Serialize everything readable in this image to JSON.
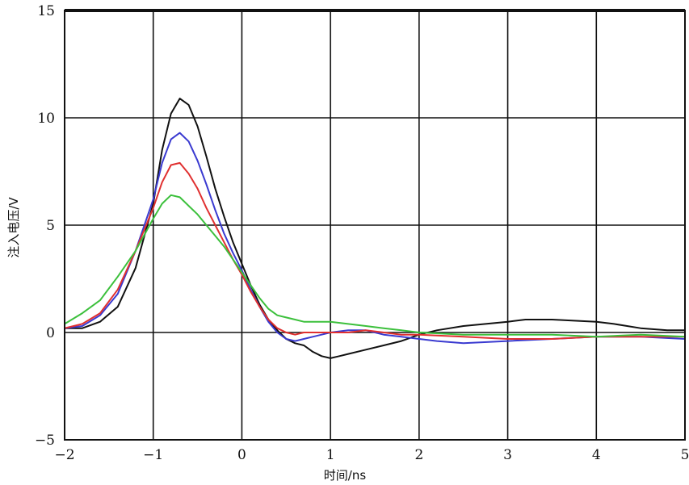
{
  "chart_data": {
    "type": "line",
    "xlabel": "时间/ns",
    "ylabel": "注入电压/V",
    "xlim": [
      -2,
      5
    ],
    "ylim": [
      -5,
      15
    ],
    "xticks": [
      "−2",
      "−1",
      "0",
      "1",
      "2",
      "3",
      "4",
      "5"
    ],
    "yticks": [
      "−5",
      "0",
      "5",
      "10",
      "15"
    ],
    "grid": true,
    "series": [
      {
        "color": "#111111",
        "x": [
          -2,
          -1.8,
          -1.6,
          -1.4,
          -1.2,
          -1.0,
          -0.9,
          -0.8,
          -0.7,
          -0.6,
          -0.5,
          -0.4,
          -0.3,
          -0.2,
          -0.1,
          0,
          0.1,
          0.2,
          0.3,
          0.4,
          0.5,
          0.6,
          0.7,
          0.8,
          0.9,
          1.0,
          1.1,
          1.2,
          1.4,
          1.6,
          1.8,
          2.0,
          2.2,
          2.5,
          3.0,
          3.2,
          3.5,
          4.0,
          4.2,
          4.5,
          4.8,
          5.0
        ],
        "y": [
          0.2,
          0.2,
          0.5,
          1.2,
          3.0,
          6.0,
          8.5,
          10.2,
          10.9,
          10.6,
          9.6,
          8.2,
          6.7,
          5.4,
          4.2,
          3.2,
          2.2,
          1.3,
          0.6,
          0.1,
          -0.3,
          -0.5,
          -0.6,
          -0.9,
          -1.1,
          -1.2,
          -1.1,
          -1.0,
          -0.8,
          -0.6,
          -0.4,
          -0.1,
          0.1,
          0.3,
          0.5,
          0.6,
          0.6,
          0.5,
          0.4,
          0.2,
          0.1,
          0.1
        ]
      },
      {
        "color": "#3a3ad0",
        "x": [
          -2,
          -1.8,
          -1.6,
          -1.4,
          -1.2,
          -1.0,
          -0.9,
          -0.8,
          -0.7,
          -0.6,
          -0.5,
          -0.4,
          -0.3,
          -0.2,
          -0.1,
          0,
          0.1,
          0.2,
          0.3,
          0.4,
          0.5,
          0.6,
          0.7,
          0.8,
          0.9,
          1.0,
          1.2,
          1.4,
          1.6,
          1.8,
          2.0,
          2.2,
          2.5,
          3.0,
          3.5,
          4.0,
          4.5,
          5.0
        ],
        "y": [
          0.2,
          0.3,
          0.8,
          1.8,
          3.8,
          6.2,
          7.9,
          9.0,
          9.3,
          8.9,
          8.0,
          6.9,
          5.7,
          4.6,
          3.7,
          2.9,
          2.0,
          1.2,
          0.5,
          0.0,
          -0.3,
          -0.4,
          -0.3,
          -0.2,
          -0.1,
          0.0,
          0.1,
          0.1,
          -0.1,
          -0.2,
          -0.3,
          -0.4,
          -0.5,
          -0.4,
          -0.3,
          -0.2,
          -0.2,
          -0.3
        ]
      },
      {
        "color": "#e03030",
        "x": [
          -2,
          -1.8,
          -1.6,
          -1.4,
          -1.2,
          -1.0,
          -0.9,
          -0.8,
          -0.7,
          -0.6,
          -0.5,
          -0.4,
          -0.3,
          -0.2,
          -0.1,
          0,
          0.1,
          0.2,
          0.3,
          0.4,
          0.5,
          0.6,
          0.7,
          0.8,
          0.9,
          1.0,
          1.2,
          1.4,
          1.6,
          1.8,
          2.0,
          2.5,
          3.0,
          3.5,
          4.0,
          4.5,
          5.0
        ],
        "y": [
          0.2,
          0.4,
          0.9,
          2.0,
          3.8,
          5.8,
          7.0,
          7.8,
          7.9,
          7.4,
          6.7,
          5.8,
          5.0,
          4.2,
          3.4,
          2.7,
          1.9,
          1.2,
          0.6,
          0.2,
          0.0,
          -0.1,
          0.0,
          0.0,
          0.0,
          0.0,
          0.0,
          0.1,
          0.0,
          -0.1,
          -0.1,
          -0.2,
          -0.3,
          -0.3,
          -0.2,
          -0.2,
          -0.2
        ]
      },
      {
        "color": "#3cc03c",
        "x": [
          -2,
          -1.8,
          -1.6,
          -1.4,
          -1.2,
          -1.0,
          -0.9,
          -0.8,
          -0.7,
          -0.6,
          -0.5,
          -0.4,
          -0.3,
          -0.2,
          -0.1,
          0,
          0.1,
          0.2,
          0.3,
          0.4,
          0.5,
          0.6,
          0.7,
          0.8,
          0.9,
          1.0,
          1.2,
          1.4,
          1.6,
          1.8,
          2.0,
          2.5,
          3.0,
          3.5,
          4.0,
          4.5,
          5.0
        ],
        "y": [
          0.4,
          0.9,
          1.5,
          2.6,
          3.8,
          5.3,
          6.0,
          6.4,
          6.3,
          5.9,
          5.5,
          5.0,
          4.5,
          4.0,
          3.4,
          2.8,
          2.2,
          1.6,
          1.1,
          0.8,
          0.7,
          0.6,
          0.5,
          0.5,
          0.5,
          0.5,
          0.4,
          0.3,
          0.2,
          0.1,
          0.0,
          -0.1,
          -0.1,
          -0.1,
          -0.2,
          -0.1,
          -0.2
        ]
      }
    ]
  }
}
